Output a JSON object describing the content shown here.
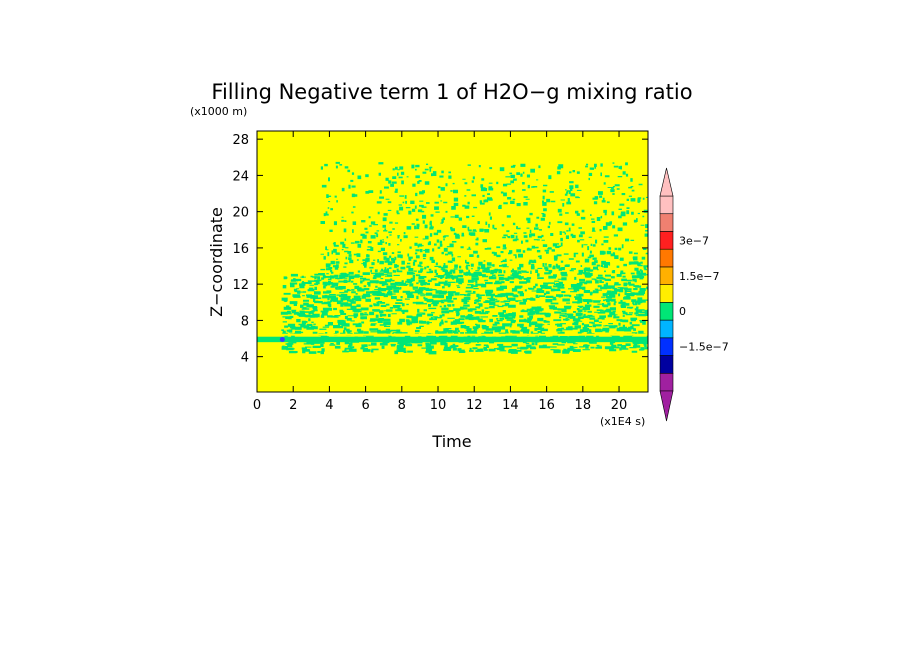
{
  "chart_data": {
    "type": "heatmap",
    "title": "Filling Negative term 1 of H2O−g mixing ratio",
    "xlabel": "Time",
    "ylabel": "Z−coordinate",
    "x_unit": "(x1E4 s)",
    "y_unit": "(x1000 m)",
    "xlim": [
      0,
      21.6
    ],
    "ylim": [
      0.1,
      28.9
    ],
    "x_ticks": [
      "0",
      "2",
      "4",
      "6",
      "8",
      "10",
      "12",
      "14",
      "16",
      "18",
      "20"
    ],
    "y_ticks": [
      "4",
      "8",
      "12",
      "16",
      "20",
      "24",
      "28"
    ],
    "background_level": "0 to 1.5e-8 (yellow)",
    "features": [
      {
        "description": "continuous slightly negative band",
        "z_range": [
          5.6,
          6.2
        ],
        "x_range": [
          0,
          21.6
        ],
        "color": "#00e676"
      },
      {
        "description": "patchy slightly negative region (dense)",
        "z_range": [
          4.5,
          13.5
        ],
        "x_range": [
          1.3,
          21.6
        ],
        "color": "#00e676"
      },
      {
        "description": "sparse slightly negative speckle",
        "z_range": [
          13.5,
          25.5
        ],
        "x_range": [
          3.5,
          21.6
        ],
        "color": "#00e676"
      },
      {
        "description": "small negative spot",
        "x": 1.4,
        "z": 5.9,
        "color": "#3a3aff"
      }
    ],
    "colorbar": {
      "levels": [
        {
          "color": "#a020a0"
        },
        {
          "color": "#0000a0"
        },
        {
          "color": "#0030ff"
        },
        {
          "color": "#00b4ff"
        },
        {
          "color": "#00e676"
        },
        {
          "color": "#ffee00"
        },
        {
          "color": "#ffb000"
        },
        {
          "color": "#ff7800"
        },
        {
          "color": "#ff2020"
        },
        {
          "color": "#f08070"
        },
        {
          "color": "#ffc0c0"
        }
      ],
      "tick_labels": [
        "−1.5e−7",
        "0",
        "1.5e−7",
        "3e−7"
      ],
      "extend": "both"
    },
    "grid": false,
    "legend": "colorbar-right"
  },
  "colors": {
    "background_field": "#ffff00",
    "negative_small": "#00e676"
  }
}
